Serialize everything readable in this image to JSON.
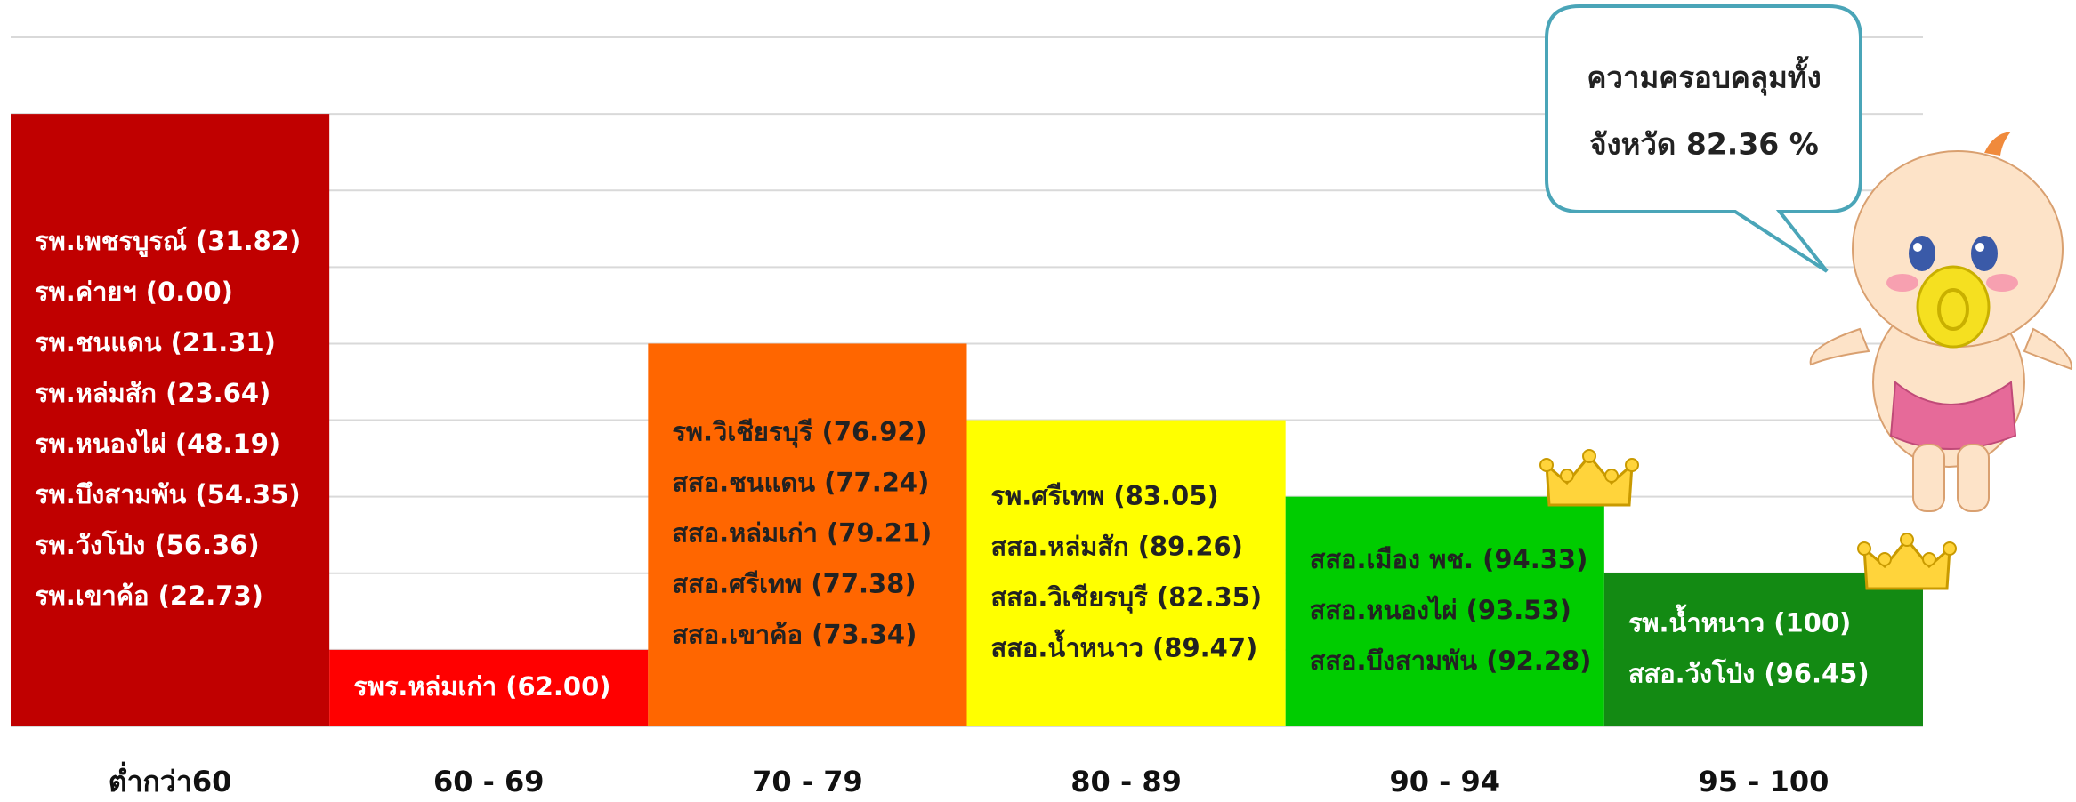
{
  "chart_data": {
    "type": "bar",
    "categories": [
      "ต่ำกว่า60",
      "60 - 69",
      "70 - 79",
      "80 - 89",
      "90 - 94",
      "95 - 100"
    ],
    "values": [
      8,
      1,
      5,
      4,
      3,
      2
    ],
    "colors": [
      "#c00000",
      "#ff0000",
      "#ff6600",
      "#ffff00",
      "#00cc00",
      "#138a13"
    ],
    "label_colors": [
      "#ffffff",
      "#ffffff",
      "#222222",
      "#222222",
      "#222222",
      "#ffffff"
    ],
    "bar_labels": [
      [
        "รพ.เพชรบูรณ์ (31.82)",
        "รพ.ค่ายฯ (0.00)",
        "รพ.ชนแดน (21.31)",
        "รพ.หล่มสัก (23.64)",
        "รพ.หนองไผ่ (48.19)",
        "รพ.บึงสามพัน (54.35)",
        "รพ.วังโป่ง (56.36)",
        "รพ.เขาค้อ (22.73)"
      ],
      [
        "รพร.หล่มเก่า (62.00)"
      ],
      [
        "รพ.วิเชียรบุรี (76.92)",
        "สสอ.ชนแดน (77.24)",
        "สสอ.หล่มเก่า (79.21)",
        "สสอ.ศรีเทพ (77.38)",
        "สสอ.เขาค้อ (73.34)"
      ],
      [
        "รพ.ศรีเทพ (83.05)",
        "สสอ.หล่มสัก (89.26)",
        "สสอ.วิเชียรบุรี (82.35)",
        "สสอ.น้ำหนาว (89.47)"
      ],
      [
        "สสอ.เมือง พช. (94.33)",
        "สสอ.หนองไผ่ (93.53)",
        "สสอ.บึงสามพัน (92.28)"
      ],
      [
        "รพ.น้ำหนาว (100)",
        "สสอ.วังโป่ง (96.45)"
      ]
    ],
    "ylim": [
      0,
      9
    ],
    "yticks": [
      0,
      1,
      2,
      3,
      4,
      5,
      6,
      7,
      8,
      9
    ],
    "grid": true,
    "callout": [
      "ความครอบคลุมทั้ง",
      "จังหวัด 82.36 %"
    ]
  }
}
